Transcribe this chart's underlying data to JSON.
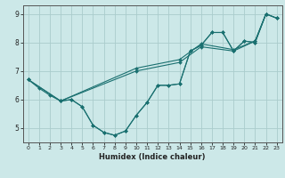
{
  "xlabel": "Humidex (Indice chaleur)",
  "bg_color": "#cce8e8",
  "grid_color": "#aacccc",
  "line_color": "#1a7070",
  "xlim": [
    -0.5,
    23.5
  ],
  "ylim": [
    4.5,
    9.3
  ],
  "xticks": [
    0,
    1,
    2,
    3,
    4,
    5,
    6,
    7,
    8,
    9,
    10,
    11,
    12,
    13,
    14,
    15,
    16,
    17,
    18,
    19,
    20,
    21,
    22,
    23
  ],
  "yticks": [
    5,
    6,
    7,
    8,
    9
  ],
  "series": [
    {
      "x": [
        0,
        1,
        2,
        3,
        4,
        5,
        6,
        7,
        8,
        9,
        10,
        11,
        12,
        13,
        14,
        15,
        16,
        17,
        18,
        19,
        20,
        21,
        22,
        23
      ],
      "y": [
        6.7,
        6.4,
        6.15,
        5.95,
        6.0,
        5.75,
        5.1,
        4.85,
        4.75,
        4.9,
        5.45,
        5.9,
        6.5,
        6.5,
        6.55,
        7.7,
        7.9,
        8.35,
        8.35,
        7.7,
        8.05,
        8.0,
        9.0,
        8.85
      ]
    },
    {
      "x": [
        0,
        3,
        10,
        14,
        16,
        19,
        21,
        22,
        23
      ],
      "y": [
        6.7,
        5.95,
        7.0,
        7.3,
        7.85,
        7.7,
        8.05,
        9.0,
        8.85
      ]
    },
    {
      "x": [
        0,
        3,
        10,
        14,
        16,
        19,
        21,
        22,
        23
      ],
      "y": [
        6.7,
        5.95,
        7.1,
        7.4,
        7.95,
        7.75,
        8.05,
        9.0,
        8.85
      ]
    },
    {
      "x": [
        3,
        4,
        5,
        6,
        7,
        8,
        9,
        10,
        11,
        12,
        13,
        14,
        15,
        16,
        17,
        18,
        19,
        20,
        21,
        22
      ],
      "y": [
        5.95,
        6.0,
        5.75,
        5.1,
        4.85,
        4.75,
        4.9,
        5.45,
        5.9,
        6.5,
        6.5,
        6.55,
        7.7,
        7.9,
        8.35,
        8.35,
        7.7,
        8.05,
        8.0,
        9.0
      ]
    }
  ]
}
